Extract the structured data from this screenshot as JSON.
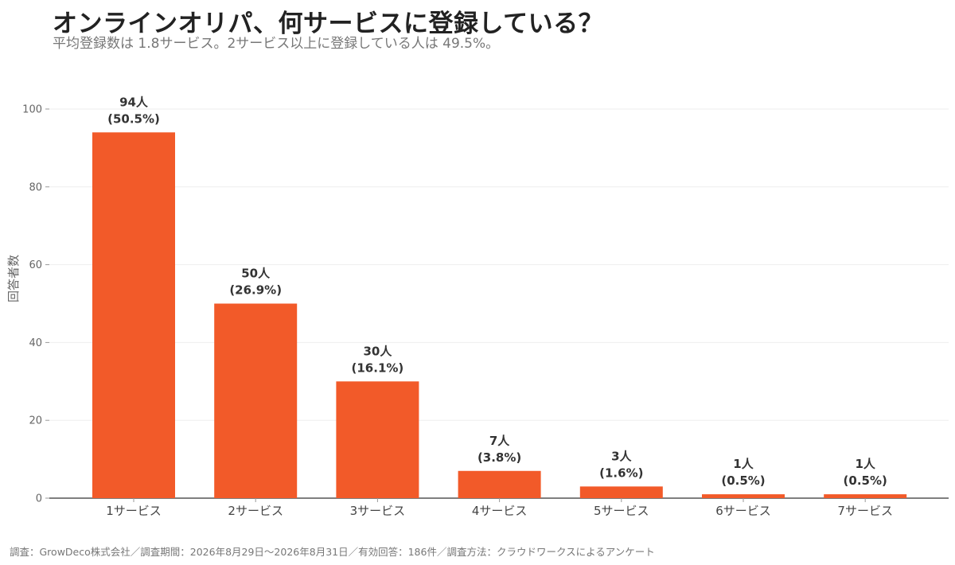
{
  "title": "オンラインオリパ、何サービスに登録している？",
  "subtitle": "平均登録数は 1.8サービス。2サービス以上に登録している人は 49.5%。",
  "footer": "調査：GrowDeco株式会社／調査期間：2026年8月29日〜2026年8月31日／有効回答：186件／調査方法：クラウドワークスによるアンケート",
  "colors": {
    "bar": "#f25a29",
    "grid": "#eeeeee",
    "axis": "#333333"
  },
  "chart_data": {
    "type": "bar",
    "title": "オンラインオリパ、何サービスに登録している？",
    "xlabel": "",
    "ylabel": "回答者数",
    "categories": [
      "1サービス",
      "2サービス",
      "3サービス",
      "4サービス",
      "5サービス",
      "6サービス",
      "7サービス"
    ],
    "values": [
      94,
      50,
      30,
      7,
      3,
      1,
      1
    ],
    "labels": [
      [
        "94人",
        "(50.5%)"
      ],
      [
        "50人",
        "(26.9%)"
      ],
      [
        "30人",
        "(16.1%)"
      ],
      [
        "7人",
        "(3.8%)"
      ],
      [
        "3人",
        "(1.6%)"
      ],
      [
        "1人",
        "(0.5%)"
      ],
      [
        "1人",
        "(0.5%)"
      ]
    ],
    "ylim": [
      0,
      100
    ],
    "yticks": [
      0,
      20,
      40,
      60,
      80,
      100
    ],
    "grid": true,
    "legend": "none"
  }
}
